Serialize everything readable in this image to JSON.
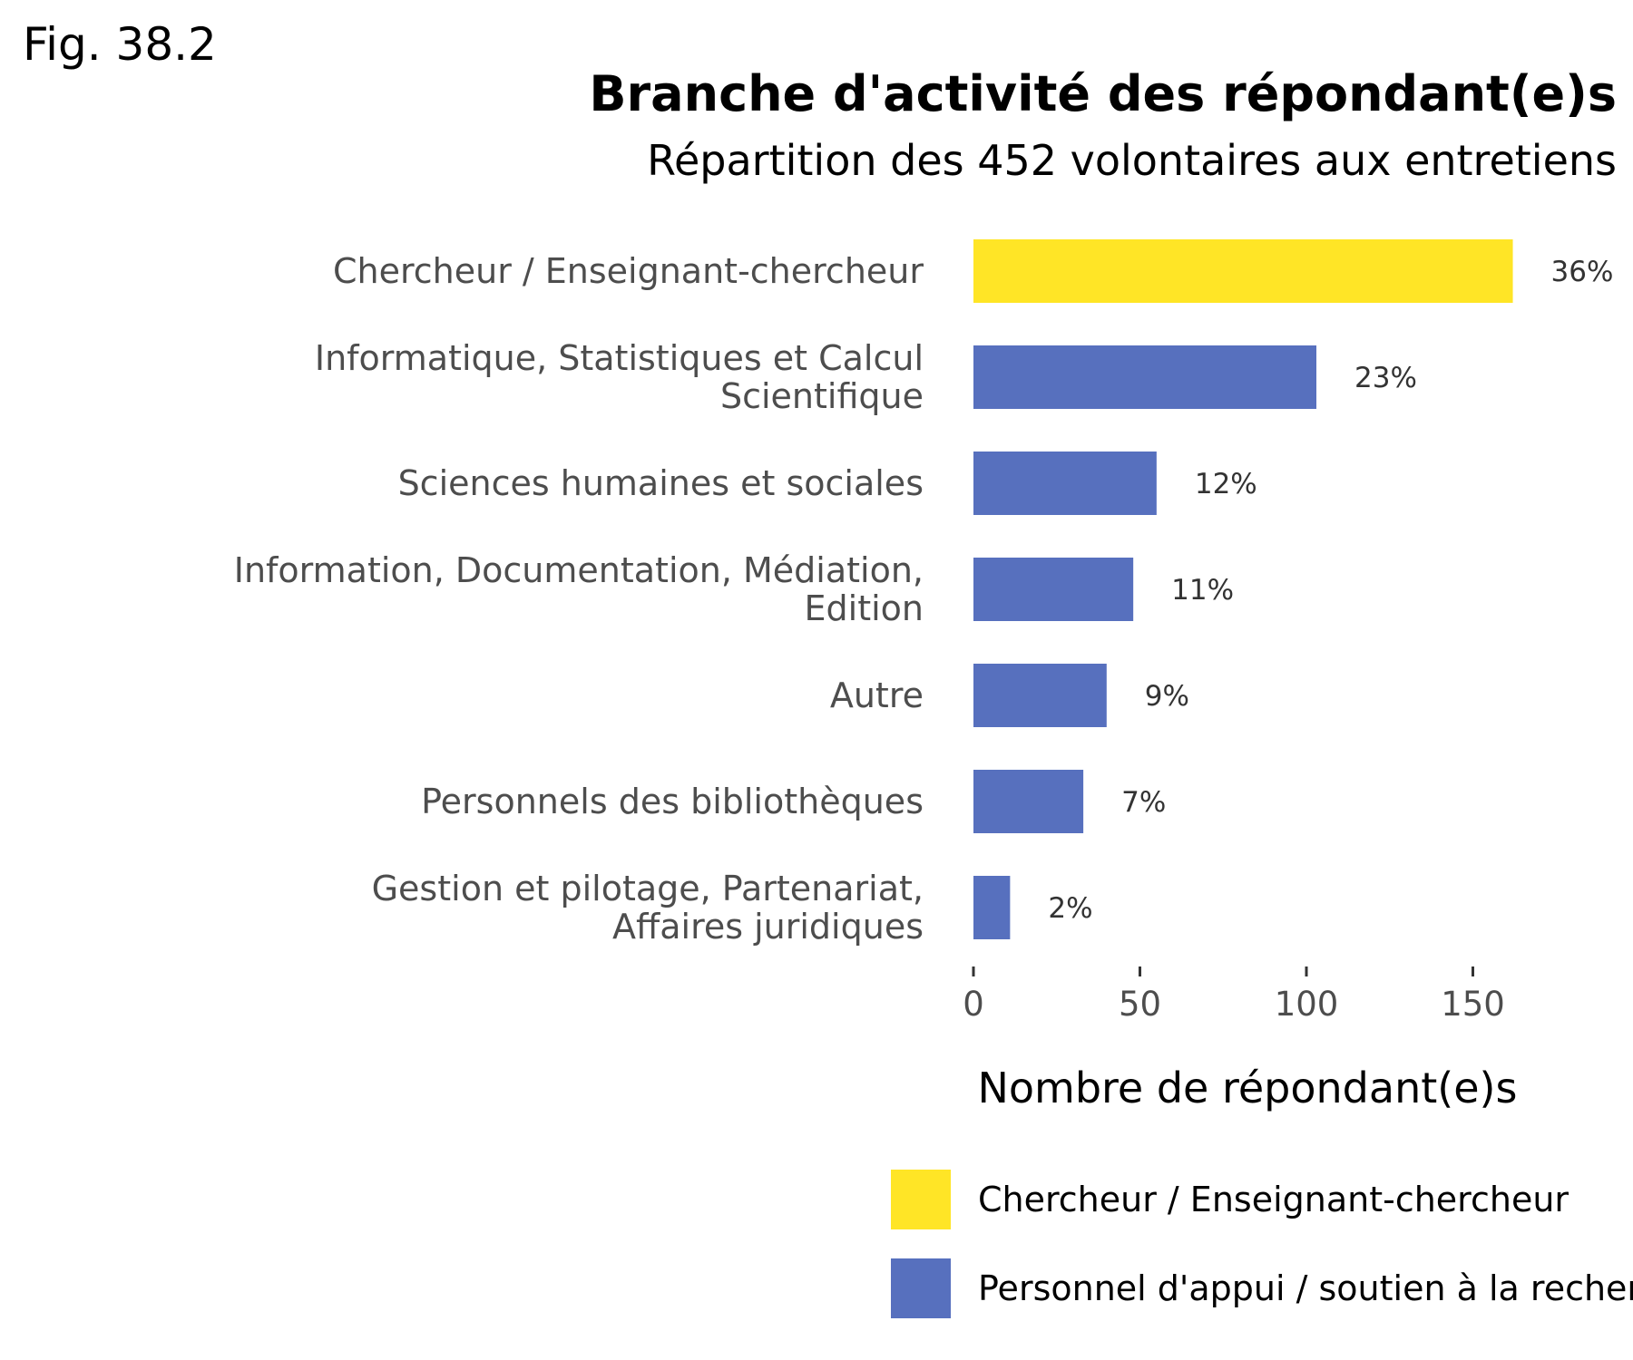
{
  "figure_label": "Fig. 38.2",
  "colors": {
    "chercheur": "#FFE526",
    "personnel": "#5770BE"
  },
  "chart_data": {
    "type": "bar",
    "orientation": "horizontal",
    "title": "Branche d'activité des répondant(e)s",
    "subtitle": "Répartition des 452 volontaires aux entretiens",
    "xlabel": "Nombre de répondant(e)s",
    "ylabel": "",
    "xlim": [
      0,
      170
    ],
    "xticks": [
      0,
      50,
      100,
      150
    ],
    "grid": false,
    "categories": [
      [
        "Chercheur / Enseignant-chercheur"
      ],
      [
        "Informatique, Statistiques et Calcul",
        "Scientifique"
      ],
      [
        "Sciences humaines et sociales"
      ],
      [
        "Information, Documentation, Médiation,",
        "Edition"
      ],
      [
        "Autre"
      ],
      [
        "Personnels des bibliothèques"
      ],
      [
        "Gestion et pilotage, Partenariat,",
        "Affaires juridiques"
      ]
    ],
    "values": [
      162,
      103,
      55,
      48,
      40,
      33,
      11
    ],
    "value_labels": [
      "36%",
      "23%",
      "12%",
      "11%",
      "9%",
      "7%",
      "2%"
    ],
    "groups": [
      "chercheur",
      "personnel",
      "personnel",
      "personnel",
      "personnel",
      "personnel",
      "personnel"
    ],
    "legend_position": "bottom-right",
    "legend": [
      {
        "key": "chercheur",
        "label": "Chercheur / Enseignant-chercheur"
      },
      {
        "key": "personnel",
        "label": "Personnel d'appui / soutien à la recherche"
      }
    ]
  }
}
